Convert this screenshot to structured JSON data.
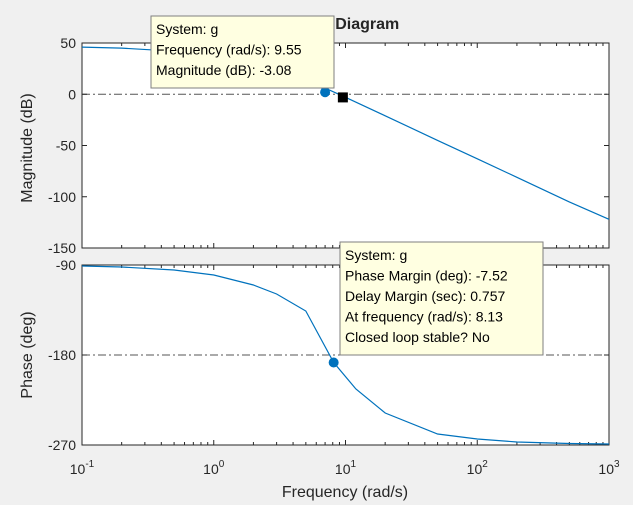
{
  "chart_data": {
    "type": "line",
    "title": "Bode Diagram",
    "x_scale": "log",
    "xlabel": "Frequency  (rad/s)",
    "xlim": [
      0.1,
      1000
    ],
    "x_ticks": [
      {
        "value": 0.1,
        "base": "10",
        "exp": "-1"
      },
      {
        "value": 1,
        "base": "10",
        "exp": "0"
      },
      {
        "value": 10,
        "base": "10",
        "exp": "1"
      },
      {
        "value": 100,
        "base": "10",
        "exp": "2"
      },
      {
        "value": 1000,
        "base": "10",
        "exp": "3"
      }
    ],
    "color": "#0072bd",
    "reference_color": "#555555",
    "marker_color": "#0072bd",
    "magnitude": {
      "ylabel": "Magnitude (dB)",
      "ylim": [
        -150,
        50
      ],
      "y_ticks": [
        "50",
        "0",
        "-50",
        "-100",
        "-150"
      ],
      "reference_line": 0,
      "x": [
        0.1,
        0.2,
        0.5,
        1,
        2,
        4,
        7,
        10,
        20,
        50,
        100,
        200,
        500,
        1000
      ],
      "y": [
        46,
        45,
        42,
        37,
        30,
        18,
        6,
        -3,
        -21,
        -45,
        -63,
        -81,
        -105,
        -122
      ],
      "crossover_marker": {
        "x": 7,
        "y": 2
      },
      "square_marker": {
        "x": 9.55,
        "y": -3.08
      }
    },
    "phase": {
      "ylabel": "Phase (deg)",
      "ylim": [
        -270,
        -90
      ],
      "y_ticks": [
        "-90",
        "-180",
        "-270"
      ],
      "reference_line": -180,
      "x": [
        0.1,
        0.2,
        0.5,
        1,
        2,
        3,
        5,
        8.13,
        12,
        20,
        50,
        100,
        200,
        500,
        1000
      ],
      "y": [
        -91,
        -92,
        -95,
        -100,
        -110,
        -119,
        -136,
        -187.5,
        -214,
        -238,
        -259,
        -264,
        -267,
        -268.5,
        -269
      ],
      "phase_margin_marker": {
        "x": 8.13,
        "y": -187.52
      }
    },
    "tooltips": [
      {
        "lines": [
          "System: g",
          "Frequency (rad/s): 9.55",
          "Magnitude (dB): -3.08"
        ]
      },
      {
        "lines": [
          "System: g",
          "Phase Margin (deg): -7.52",
          "Delay Margin (sec): 0.757",
          "At frequency (rad/s): 8.13",
          "Closed loop stable? No"
        ]
      }
    ]
  }
}
